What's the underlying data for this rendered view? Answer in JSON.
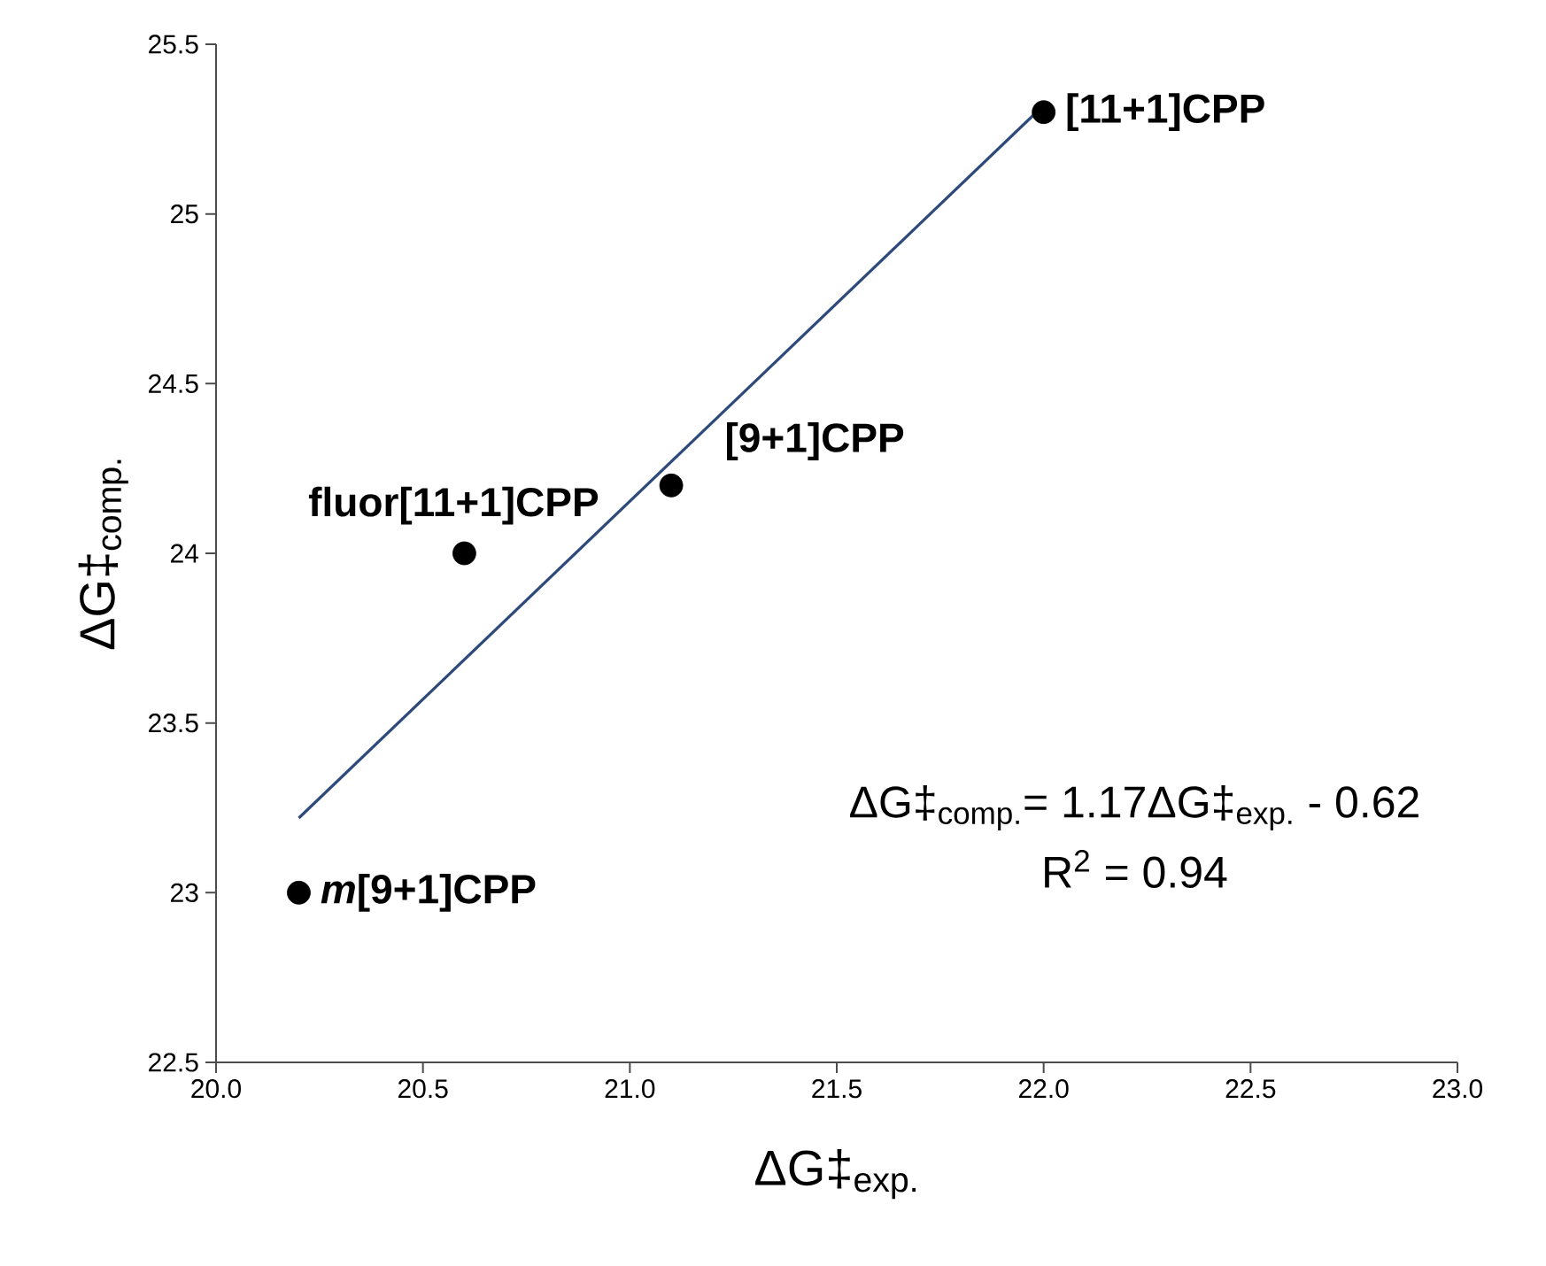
{
  "chart_data": {
    "type": "scatter",
    "xlabel": "ΔG‡$_{exp.}$",
    "ylabel": "ΔG‡$_{comp.}$",
    "xlim": [
      20,
      23
    ],
    "ylim": [
      22.5,
      25.5
    ],
    "xticks": [
      {
        "value": 20,
        "label": "20.0"
      },
      {
        "value": 20.5,
        "label": "20.5"
      },
      {
        "value": 21,
        "label": "21.0"
      },
      {
        "value": 21.5,
        "label": "21.5"
      },
      {
        "value": 22,
        "label": "22.0"
      },
      {
        "value": 22.5,
        "label": "22.5"
      },
      {
        "value": 23,
        "label": "23.0"
      }
    ],
    "yticks": [
      22.5,
      23,
      23.5,
      24,
      24.5,
      25,
      25.5
    ],
    "grid": false,
    "marker": "circle",
    "series": [
      {
        "color": "#000000",
        "x": [
          20.2,
          20.6,
          21.1,
          22.0
        ],
        "values": [
          23.0,
          24.0,
          24.2,
          25.3
        ]
      },
      {
        "type": "line",
        "color": "#2e4a7a",
        "line_style": "solid",
        "marker": "none",
        "x": [
          20.2,
          22.0
        ],
        "values": [
          23.22,
          25.32
        ]
      }
    ],
    "annotations": [
      {
        "text": "*m*[9+1]CPP",
        "x": 20.2,
        "y": 23.0
      },
      {
        "text": "fluor[11+1]CPP",
        "x": 20.6,
        "y": 24.0
      },
      {
        "text": "[9+1]CPP",
        "x": 21.1,
        "y": 24.2
      },
      {
        "text": "[11+1]CPP",
        "x": 22.0,
        "y": 25.3
      },
      "ΔG‡$_{comp.}$= 1.17ΔG‡$_{exp.}$ - 0.62",
      "R$^{2}$ = 0.94"
    ]
  }
}
